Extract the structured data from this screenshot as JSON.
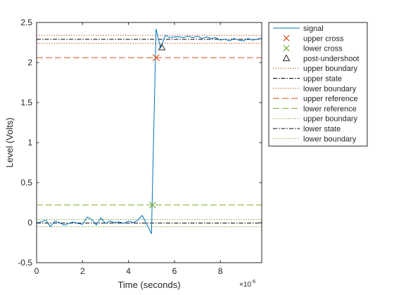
{
  "chart_data": {
    "type": "line",
    "xlabel": "Time (seconds)",
    "ylabel": "Level (Volts)",
    "x_exponent_label": "×10",
    "x_exponent_power": "-6",
    "xlim": [
      0,
      9.8
    ],
    "ylim": [
      -0.5,
      2.5
    ],
    "x_ticks": [
      0,
      2,
      4,
      6,
      8
    ],
    "x_tick_labels": [
      "0",
      "2",
      "4",
      "6",
      "8"
    ],
    "y_ticks": [
      -0.5,
      0,
      0.5,
      1,
      1.5,
      2,
      2.5
    ],
    "y_tick_labels": [
      "-0.5",
      "0",
      "0.5",
      "1",
      "1.5",
      "2",
      "2.5"
    ],
    "grid": false,
    "legend_position": "outside-top-right",
    "series": [
      {
        "name": "signal",
        "kind": "line",
        "color": "#0072BD",
        "x": [
          0,
          0.2,
          0.4,
          0.6,
          0.8,
          1.0,
          1.2,
          1.4,
          1.6,
          1.8,
          2.0,
          2.2,
          2.4,
          2.6,
          2.8,
          3.0,
          3.2,
          3.4,
          3.6,
          3.8,
          4.0,
          4.2,
          4.4,
          4.6,
          4.8,
          5.0,
          5.2,
          5.4,
          5.6,
          5.8,
          6.0,
          6.2,
          6.4,
          6.6,
          6.8,
          7.0,
          7.2,
          7.4,
          7.6,
          7.8,
          8.0,
          8.2,
          8.4,
          8.6,
          8.8,
          9.0,
          9.2,
          9.4,
          9.6,
          9.8
        ],
        "y": [
          -0.01,
          0.01,
          0.03,
          -0.05,
          0.02,
          0.0,
          -0.03,
          -0.01,
          0.01,
          -0.01,
          -0.02,
          0.07,
          0.04,
          -0.03,
          0.06,
          -0.01,
          0.02,
          0.0,
          0.01,
          -0.01,
          0.02,
          0.0,
          0.03,
          0.09,
          -0.02,
          -0.14,
          2.42,
          2.18,
          2.34,
          2.31,
          2.32,
          2.32,
          2.31,
          2.33,
          2.31,
          2.33,
          2.3,
          2.32,
          2.3,
          2.31,
          2.28,
          2.29,
          2.27,
          2.3,
          2.28,
          2.27,
          2.3,
          2.28,
          2.29,
          2.31
        ]
      },
      {
        "name": "upper cross",
        "kind": "marker",
        "marker": "x",
        "color": "#D95319",
        "x": [
          5.2
        ],
        "y": [
          2.06
        ]
      },
      {
        "name": "lower cross",
        "kind": "marker",
        "marker": "x",
        "color": "#77AC30",
        "x": [
          5.05
        ],
        "y": [
          0.22
        ]
      },
      {
        "name": "post-undershoot",
        "kind": "marker",
        "marker": "triangle",
        "color": "#262626",
        "x": [
          5.45
        ],
        "y": [
          2.19
        ]
      },
      {
        "name": "upper boundary",
        "kind": "hline",
        "dash": "dotted",
        "color": "#D95319",
        "y": 2.34
      },
      {
        "name": "upper state",
        "kind": "hline",
        "dash": "dashdot",
        "color": "#000000",
        "y": 2.29
      },
      {
        "name": "lower boundary",
        "kind": "hline",
        "dash": "dotted",
        "color": "#D95319",
        "y": 2.24
      },
      {
        "name": "upper reference",
        "kind": "hline",
        "dash": "dashed",
        "color": "#D95319",
        "y": 2.06
      },
      {
        "name": "lower reference",
        "kind": "hline",
        "dash": "dashed",
        "color": "#77AC30",
        "y": 0.22
      },
      {
        "name": "upper boundary",
        "kind": "hline",
        "dash": "dotted",
        "color": "#77AC30",
        "y": 0.04
      },
      {
        "name": "lower state",
        "kind": "hline",
        "dash": "dashdot",
        "color": "#000000",
        "y": -0.005
      },
      {
        "name": "lower boundary",
        "kind": "hline",
        "dash": "dotted",
        "color": "#77AC30",
        "y": -0.05
      }
    ]
  }
}
